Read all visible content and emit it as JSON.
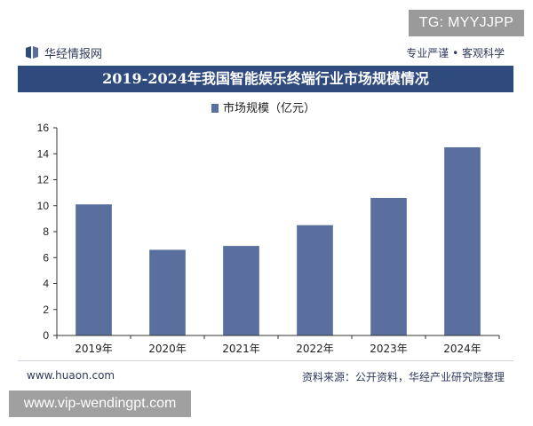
{
  "overlay": {
    "top_right_badge": "TG: MYYJJPP",
    "bottom_left_badge": "www.vip-wendingpt.com"
  },
  "header": {
    "brand": "华经情报网",
    "slogan": "专业严谨 • 客观科学",
    "logo_icon": "huajing-logo-icon"
  },
  "title": "2019-2024年我国智能娱乐终端行业市场规模情况",
  "footer": {
    "site": "www.huaon.com",
    "source": "资料来源：公开资料，华经产业研究院整理"
  },
  "colors": {
    "bar": "#5a6f9e",
    "title_bg": "#2f4a7c",
    "brand_text": "#2e3a5c"
  },
  "chart_data": {
    "type": "bar",
    "categories": [
      "2019年",
      "2020年",
      "2021年",
      "2022年",
      "2023年",
      "2024年"
    ],
    "series": [
      {
        "name": "市场规模（亿元）",
        "values": [
          10.1,
          6.6,
          6.9,
          8.5,
          10.6,
          14.5
        ]
      }
    ],
    "ylim": [
      0,
      16
    ],
    "yticks": [
      0,
      2,
      4,
      6,
      8,
      10,
      12,
      14,
      16
    ],
    "legend_position": "top-center",
    "grid": false
  }
}
